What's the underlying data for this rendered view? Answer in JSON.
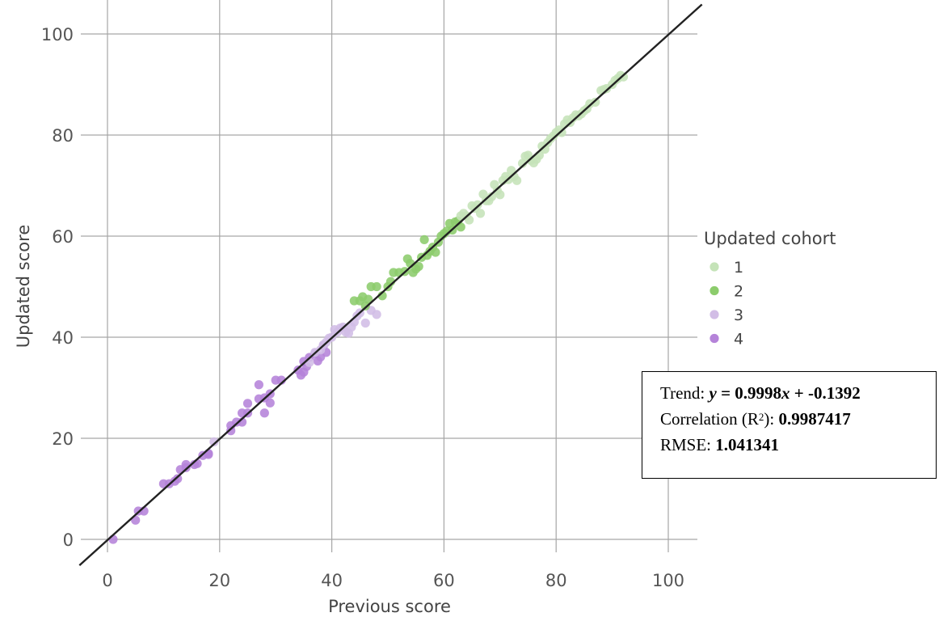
{
  "chart_data": {
    "type": "scatter",
    "xlabel": "Previous score",
    "ylabel": "Updated score",
    "xlim": [
      -5,
      105
    ],
    "ylim": [
      -3,
      104
    ],
    "x_ticks": [
      0,
      20,
      40,
      60,
      80,
      100
    ],
    "y_ticks": [
      0,
      20,
      40,
      60,
      80,
      100
    ],
    "grid": true,
    "legend": {
      "title": "Updated cohort",
      "placement": "right",
      "entries": [
        {
          "label": "1",
          "color": "#c5e3b8"
        },
        {
          "label": "2",
          "color": "#8ccc6c"
        },
        {
          "label": "3",
          "color": "#d2bde6"
        },
        {
          "label": "4",
          "color": "#b583d9"
        }
      ]
    },
    "trendline": {
      "slope": 0.9998,
      "intercept": -0.1392,
      "color": "#222222"
    },
    "stats": {
      "trend_label": "Trend: ",
      "trend_y": "y",
      "trend_eq_1": " = 0.9998",
      "trend_x": "x",
      "trend_eq_2": " + -0.1392",
      "corr_label_a": "Correlation (R",
      "corr_sup": "2",
      "corr_label_b": "): ",
      "corr_value": "0.9987417",
      "rmse_label": "RMSE: ",
      "rmse_value": "1.041341"
    },
    "series": [
      {
        "name": "4",
        "color": "#b583d9",
        "points": [
          [
            1,
            0
          ],
          [
            5,
            3.8
          ],
          [
            5.5,
            5.6
          ],
          [
            6.5,
            5.6
          ],
          [
            10,
            11
          ],
          [
            11,
            11
          ],
          [
            12,
            11.5
          ],
          [
            12.5,
            12
          ],
          [
            13,
            13.8
          ],
          [
            14,
            14.2
          ],
          [
            14,
            14.8
          ],
          [
            15.5,
            14.8
          ],
          [
            16,
            15
          ],
          [
            17,
            16.6
          ],
          [
            18,
            17
          ],
          [
            18,
            16.8
          ],
          [
            22,
            21.5
          ],
          [
            22,
            22.5
          ],
          [
            23,
            23.2
          ],
          [
            24,
            23.2
          ],
          [
            24,
            25
          ],
          [
            25,
            26.9
          ],
          [
            25,
            25
          ],
          [
            27,
            27.8
          ],
          [
            27,
            30.6
          ],
          [
            28,
            28
          ],
          [
            28,
            25
          ],
          [
            29,
            28.8
          ],
          [
            29,
            27
          ],
          [
            30,
            31.5
          ],
          [
            31,
            31.5
          ],
          [
            34,
            33.5
          ],
          [
            34.5,
            32.5
          ],
          [
            35,
            33.1
          ],
          [
            35,
            35.2
          ],
          [
            35.5,
            34.2
          ],
          [
            36,
            36
          ],
          [
            37,
            36.8
          ],
          [
            37.5,
            35.3
          ],
          [
            38,
            36.1
          ],
          [
            38.5,
            38.3
          ],
          [
            39,
            37
          ]
        ]
      },
      {
        "name": "3",
        "color": "#d2bde6",
        "points": [
          [
            19,
            19.3
          ],
          [
            36,
            35
          ],
          [
            37,
            37
          ],
          [
            38,
            37.5
          ],
          [
            38.5,
            38.5
          ],
          [
            39,
            39
          ],
          [
            39.5,
            39.8
          ],
          [
            40,
            40
          ],
          [
            40.5,
            41.5
          ],
          [
            41,
            41
          ],
          [
            41.5,
            41.8
          ],
          [
            42,
            42
          ],
          [
            42.5,
            41
          ],
          [
            43,
            40.8
          ],
          [
            43.5,
            42
          ],
          [
            44,
            43
          ],
          [
            44.5,
            44.2
          ],
          [
            45,
            44.8
          ],
          [
            46,
            42.8
          ],
          [
            47,
            45.3
          ],
          [
            48,
            44.5
          ]
        ]
      },
      {
        "name": "2",
        "color": "#8ccc6c",
        "points": [
          [
            44,
            47.2
          ],
          [
            45,
            47.2
          ],
          [
            45.5,
            48
          ],
          [
            46,
            46.2
          ],
          [
            46.5,
            47.5
          ],
          [
            47,
            50
          ],
          [
            48,
            50
          ],
          [
            49,
            48.2
          ],
          [
            50,
            50
          ],
          [
            50.5,
            51
          ],
          [
            51,
            52.8
          ],
          [
            52,
            52.8
          ],
          [
            53,
            53
          ],
          [
            53.5,
            55.5
          ],
          [
            54,
            54.6
          ],
          [
            54.5,
            52.8
          ],
          [
            55,
            53.5
          ],
          [
            55.5,
            54
          ],
          [
            56,
            55.8
          ],
          [
            56.5,
            59.3
          ],
          [
            57,
            56.2
          ],
          [
            57.5,
            57
          ],
          [
            58,
            57.8
          ],
          [
            58.5,
            56.8
          ],
          [
            59,
            58.8
          ],
          [
            59.5,
            60
          ],
          [
            60,
            60.5
          ],
          [
            60.5,
            61
          ],
          [
            61,
            62.5
          ],
          [
            61.5,
            61.2
          ],
          [
            62,
            62.8
          ],
          [
            62.5,
            63
          ],
          [
            63,
            61.8
          ]
        ]
      },
      {
        "name": "1",
        "color": "#c5e3b8",
        "points": [
          [
            63,
            64
          ],
          [
            63.5,
            64.5
          ],
          [
            64,
            64
          ],
          [
            64.5,
            63.2
          ],
          [
            65,
            66
          ],
          [
            65.5,
            65.5
          ],
          [
            66,
            66.2
          ],
          [
            66.5,
            64.5
          ],
          [
            67,
            68.3
          ],
          [
            67.5,
            67
          ],
          [
            68,
            67
          ],
          [
            68.5,
            67.8
          ],
          [
            69,
            70.2
          ],
          [
            69.5,
            69
          ],
          [
            70,
            68.2
          ],
          [
            70.5,
            71
          ],
          [
            71,
            71.8
          ],
          [
            71.5,
            71.2
          ],
          [
            72,
            73
          ],
          [
            72.5,
            71.8
          ],
          [
            73,
            71
          ],
          [
            74,
            74.4
          ],
          [
            74.5,
            75.8
          ],
          [
            75,
            76
          ],
          [
            75.5,
            75
          ],
          [
            76,
            74.5
          ],
          [
            76.5,
            75.2
          ],
          [
            77,
            76
          ],
          [
            77.5,
            77.8
          ],
          [
            78,
            77.2
          ],
          [
            78.5,
            78.5
          ],
          [
            79,
            79.3
          ],
          [
            79.5,
            79.8
          ],
          [
            80,
            80.5
          ],
          [
            80.5,
            81
          ],
          [
            81,
            80.5
          ],
          [
            81.5,
            82.2
          ],
          [
            82,
            83
          ],
          [
            82.5,
            82.5
          ],
          [
            83,
            83.4
          ],
          [
            83.5,
            84
          ],
          [
            84,
            83.8
          ],
          [
            84.5,
            84.2
          ],
          [
            85,
            84.8
          ],
          [
            85.5,
            85.2
          ],
          [
            86,
            86.2
          ],
          [
            87,
            86.5
          ],
          [
            88,
            88.8
          ],
          [
            88.5,
            89
          ],
          [
            89,
            89.2
          ],
          [
            90,
            90
          ],
          [
            90.5,
            90.8
          ],
          [
            91,
            91.2
          ],
          [
            91.5,
            91.8
          ],
          [
            92,
            91.5
          ]
        ]
      }
    ]
  }
}
